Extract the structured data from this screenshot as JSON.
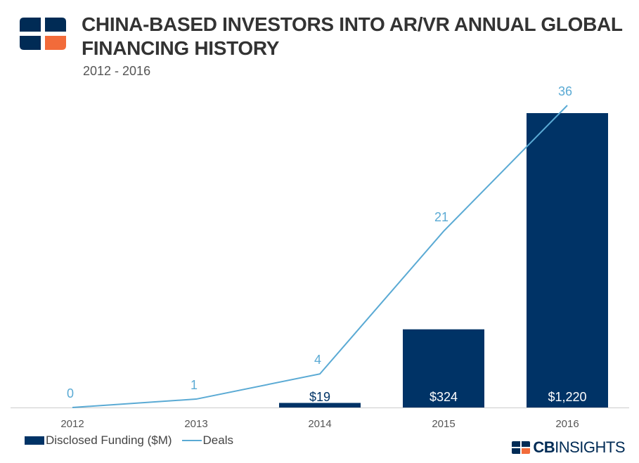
{
  "header": {
    "title_line1": "CHINA-BASED INVESTORS INTO AR/VR ANNUAL GLOBAL",
    "title_line2": "FINANCING HISTORY",
    "subtitle": "2012 - 2016"
  },
  "legend": {
    "bar_label": "Disclosed Funding ($M)",
    "line_label": "Deals"
  },
  "brand": {
    "cb": "CB",
    "rest": "INSIGHTS"
  },
  "colors": {
    "bar": "#003366",
    "line": "#5aaad4",
    "bar_label": "#ffffff"
  },
  "chart_data": {
    "type": "bar",
    "categories": [
      "2012",
      "2013",
      "2014",
      "2015",
      "2016"
    ],
    "series": [
      {
        "name": "Disclosed Funding ($M)",
        "type": "bar",
        "values": [
          0,
          0,
          19,
          324,
          1220
        ],
        "labels": [
          "",
          "",
          "$19",
          "$324",
          "$1,220"
        ]
      },
      {
        "name": "Deals",
        "type": "line",
        "values": [
          0,
          1,
          4,
          21,
          36
        ],
        "labels": [
          "0",
          "1",
          "4",
          "21",
          "36"
        ]
      }
    ],
    "grid": false,
    "legend": "bottom-left"
  }
}
